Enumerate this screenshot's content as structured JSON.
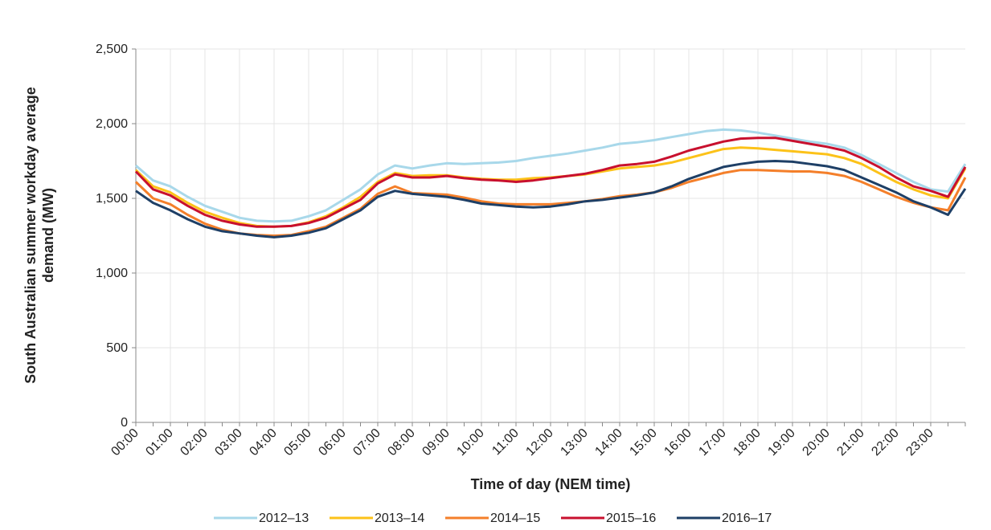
{
  "chart_data": {
    "type": "line",
    "x_label": "Time of day (NEM time)",
    "y_label": [
      "South Australian summer workday average",
      "demand (MW)"
    ],
    "categories": [
      "00:00",
      null,
      "01:00",
      null,
      "02:00",
      null,
      "03:00",
      null,
      "04:00",
      null,
      "05:00",
      null,
      "06:00",
      null,
      "07:00",
      null,
      "08:00",
      null,
      "09:00",
      null,
      "10:00",
      null,
      "11:00",
      null,
      "12:00",
      null,
      "13:00",
      null,
      "14:00",
      null,
      "15:00",
      null,
      "16:00",
      null,
      "17:00",
      null,
      "18:00",
      null,
      "19:00",
      null,
      "20:00",
      null,
      "21:00",
      null,
      "22:00",
      null,
      "23:00",
      null,
      null
    ],
    "series": [
      {
        "name": "2012–13",
        "color": "#a8d8ea",
        "values": [
          1720,
          1620,
          1580,
          1510,
          1450,
          1410,
          1370,
          1350,
          1345,
          1350,
          1380,
          1420,
          1490,
          1560,
          1660,
          1720,
          1700,
          1720,
          1735,
          1730,
          1735,
          1740,
          1750,
          1770,
          1785,
          1800,
          1820,
          1840,
          1865,
          1875,
          1890,
          1910,
          1930,
          1950,
          1960,
          1955,
          1940,
          1920,
          1900,
          1880,
          1865,
          1840,
          1790,
          1730,
          1670,
          1610,
          1560,
          1545,
          1730
        ]
      },
      {
        "name": "2013–14",
        "color": "#fcc219",
        "values": [
          1690,
          1580,
          1540,
          1470,
          1410,
          1370,
          1335,
          1315,
          1310,
          1315,
          1340,
          1380,
          1440,
          1510,
          1610,
          1670,
          1650,
          1655,
          1655,
          1640,
          1630,
          1625,
          1625,
          1635,
          1640,
          1650,
          1660,
          1680,
          1700,
          1710,
          1720,
          1740,
          1770,
          1800,
          1830,
          1840,
          1835,
          1825,
          1815,
          1805,
          1795,
          1770,
          1730,
          1670,
          1610,
          1560,
          1520,
          1500,
          1700
        ]
      },
      {
        "name": "2014–15",
        "color": "#f47f2a",
        "values": [
          1610,
          1500,
          1460,
          1390,
          1330,
          1290,
          1265,
          1255,
          1250,
          1255,
          1280,
          1310,
          1370,
          1430,
          1530,
          1580,
          1535,
          1530,
          1525,
          1505,
          1480,
          1465,
          1460,
          1460,
          1460,
          1470,
          1480,
          1495,
          1515,
          1525,
          1540,
          1570,
          1610,
          1640,
          1670,
          1690,
          1690,
          1685,
          1680,
          1680,
          1670,
          1650,
          1610,
          1560,
          1510,
          1470,
          1440,
          1420,
          1640
        ]
      },
      {
        "name": "2015–16",
        "color": "#c8102e",
        "values": [
          1680,
          1560,
          1520,
          1450,
          1390,
          1350,
          1325,
          1310,
          1310,
          1315,
          1335,
          1370,
          1430,
          1490,
          1600,
          1660,
          1640,
          1640,
          1650,
          1635,
          1625,
          1620,
          1610,
          1620,
          1635,
          1650,
          1665,
          1690,
          1720,
          1730,
          1745,
          1780,
          1820,
          1850,
          1880,
          1900,
          1905,
          1905,
          1885,
          1865,
          1845,
          1820,
          1770,
          1710,
          1640,
          1580,
          1550,
          1510,
          1710
        ]
      },
      {
        "name": "2016–17",
        "color": "#1e3f66",
        "values": [
          1550,
          1470,
          1420,
          1360,
          1310,
          1280,
          1265,
          1250,
          1240,
          1250,
          1270,
          1300,
          1360,
          1420,
          1510,
          1550,
          1530,
          1520,
          1510,
          1490,
          1465,
          1455,
          1445,
          1440,
          1445,
          1460,
          1480,
          1490,
          1505,
          1520,
          1540,
          1580,
          1630,
          1670,
          1710,
          1730,
          1745,
          1750,
          1745,
          1730,
          1715,
          1690,
          1640,
          1590,
          1540,
          1480,
          1440,
          1390,
          1565
        ]
      }
    ],
    "ylim": [
      0,
      2500
    ],
    "yticks": [
      0,
      500,
      {
        "value": 1000,
        "label": "1,000"
      },
      {
        "value": 1500,
        "label": "1,500"
      },
      {
        "value": 2000,
        "label": "2,000"
      },
      {
        "value": 2500,
        "label": "2,500"
      }
    ],
    "grid": true,
    "legend": "bottom"
  }
}
